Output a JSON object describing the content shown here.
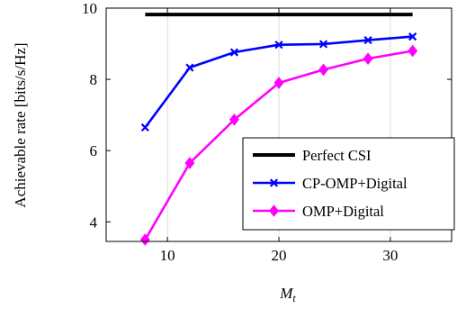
{
  "chart_data": {
    "type": "line",
    "xlabel": "M",
    "xlabel_sub": "t",
    "ylabel": "Achievable rate [bits/s/Hz]",
    "xlim": [
      4.5,
      35.5
    ],
    "ylim": [
      3.45,
      10
    ],
    "xticks": [
      10,
      20,
      30
    ],
    "yticks": [
      4,
      6,
      8,
      10
    ],
    "grid": "vertical",
    "legend_position": "bottom-right",
    "series": [
      {
        "name": "Perfect CSI",
        "color": "#000000",
        "marker": "none",
        "x": [
          8,
          32
        ],
        "y": [
          9.82,
          9.82
        ]
      },
      {
        "name": "CP-OMP+Digital",
        "color": "#0000ff",
        "marker": "x",
        "x": [
          8,
          12,
          16,
          20,
          24,
          28,
          32
        ],
        "y": [
          6.65,
          8.33,
          8.76,
          8.97,
          8.99,
          9.1,
          9.2
        ]
      },
      {
        "name": "OMP+Digital",
        "color": "#ff00ff",
        "marker": "diamond",
        "x": [
          8,
          12,
          16,
          20,
          24,
          28,
          32
        ],
        "y": [
          3.5,
          5.65,
          6.87,
          7.9,
          8.27,
          8.58,
          8.8
        ]
      }
    ]
  }
}
